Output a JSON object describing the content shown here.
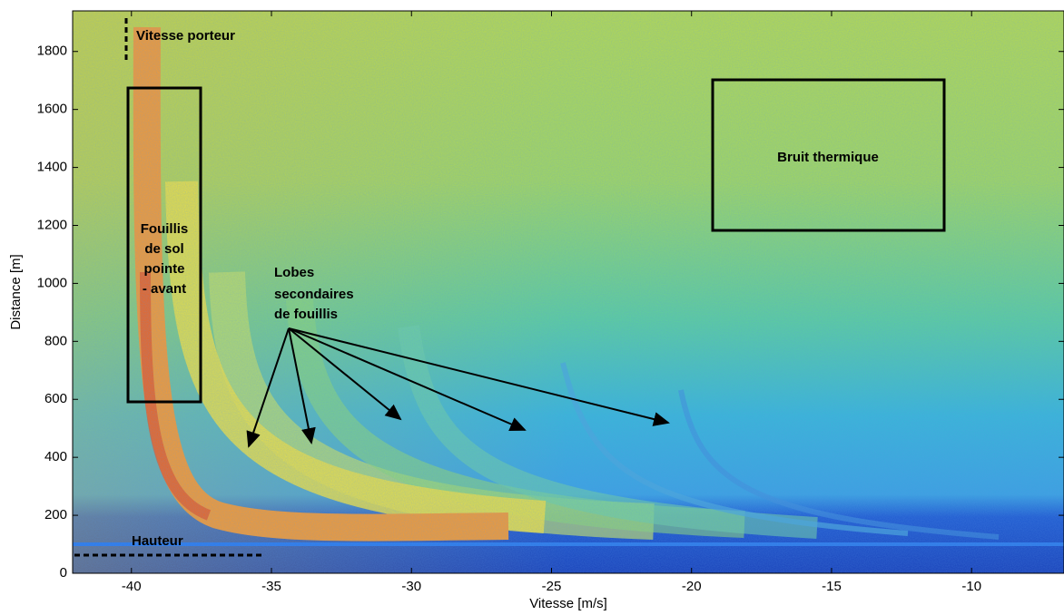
{
  "chart_data": {
    "type": "heatmap",
    "xlabel": "Vitesse [m/s]",
    "ylabel": "Distance [m]",
    "xlim": [
      -42.1,
      -6.7
    ],
    "xticks": [
      -40,
      -35,
      -30,
      -25,
      -20,
      -15,
      -10
    ],
    "ylim": [
      0,
      1940
    ],
    "yticks": [
      0,
      200,
      400,
      600,
      800,
      1000,
      1200,
      1400,
      1600,
      1800
    ],
    "annotations": {
      "carrier_speed": "Vitesse porteur",
      "ground_clutter": [
        "Fouillis",
        "de sol",
        "pointe",
        "- avant"
      ],
      "thermal_noise": "Bruit thermique",
      "side_lobes": [
        "Lobes",
        "secondaires",
        "de fouillis"
      ],
      "height": "Hauteur"
    }
  }
}
